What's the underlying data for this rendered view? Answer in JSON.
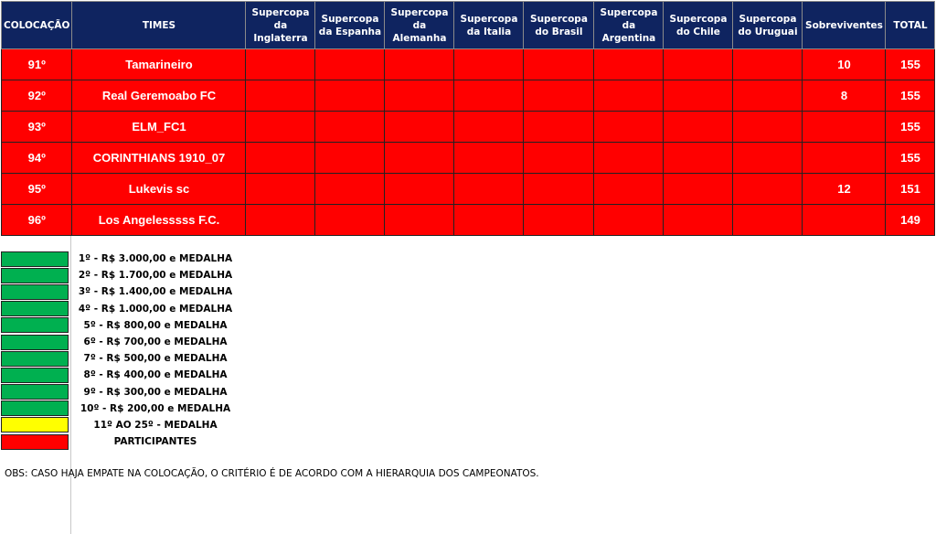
{
  "headers": [
    "COLOCAÇÃO",
    "TIMES",
    "Supercopa da Inglaterra",
    "Supercopa da Espanha",
    "Supercopa da Alemanha",
    "Supercopa da Italia",
    "Supercopa do Brasil",
    "Supercopa da Argentina",
    "Supercopa do Chile",
    "Supercopa do Uruguai",
    "Sobreviventes",
    "TOTAL"
  ],
  "rows": [
    {
      "pos": "91º",
      "team": "Tamarineiro",
      "sobreviventes": "10",
      "total": "155"
    },
    {
      "pos": "92º",
      "team": "Real Geremoabo FC",
      "sobreviventes": "8",
      "total": "155"
    },
    {
      "pos": "93º",
      "team": "ELM_FC1",
      "sobreviventes": "",
      "total": "155"
    },
    {
      "pos": "94º",
      "team": "CORINTHIANS 1910_07",
      "sobreviventes": "",
      "total": "155"
    },
    {
      "pos": "95º",
      "team": "Lukevis sc",
      "sobreviventes": "12",
      "total": "151"
    },
    {
      "pos": "96º",
      "team": "Los Angelesssss F.C.",
      "sobreviventes": "",
      "total": "149"
    }
  ],
  "legend": [
    {
      "color": "#00b050",
      "label": "1º - R$ 3.000,00 e MEDALHA"
    },
    {
      "color": "#00b050",
      "label": "2º - R$ 1.700,00 e MEDALHA"
    },
    {
      "color": "#00b050",
      "label": "3º - R$ 1.400,00 e MEDALHA"
    },
    {
      "color": "#00b050",
      "label": "4º - R$ 1.000,00 e MEDALHA"
    },
    {
      "color": "#00b050",
      "label": "5º - R$ 800,00 e MEDALHA"
    },
    {
      "color": "#00b050",
      "label": "6º - R$ 700,00 e MEDALHA"
    },
    {
      "color": "#00b050",
      "label": "7º - R$ 500,00 e MEDALHA"
    },
    {
      "color": "#00b050",
      "label": "8º - R$ 400,00 e MEDALHA"
    },
    {
      "color": "#00b050",
      "label": "9º - R$ 300,00 e MEDALHA"
    },
    {
      "color": "#00b050",
      "label": "10º - R$ 200,00 e MEDALHA"
    },
    {
      "color": "#ffff00",
      "label": "11º AO 25º - MEDALHA"
    },
    {
      "color": "#ff0000",
      "label": "PARTICIPANTES"
    }
  ],
  "obs": "OBS: CASO HAJA EMPATE NA COLOCAÇÃO, O CRITÉRIO É DE ACORDO COM A HIERARQUIA DOS CAMPEONATOS."
}
